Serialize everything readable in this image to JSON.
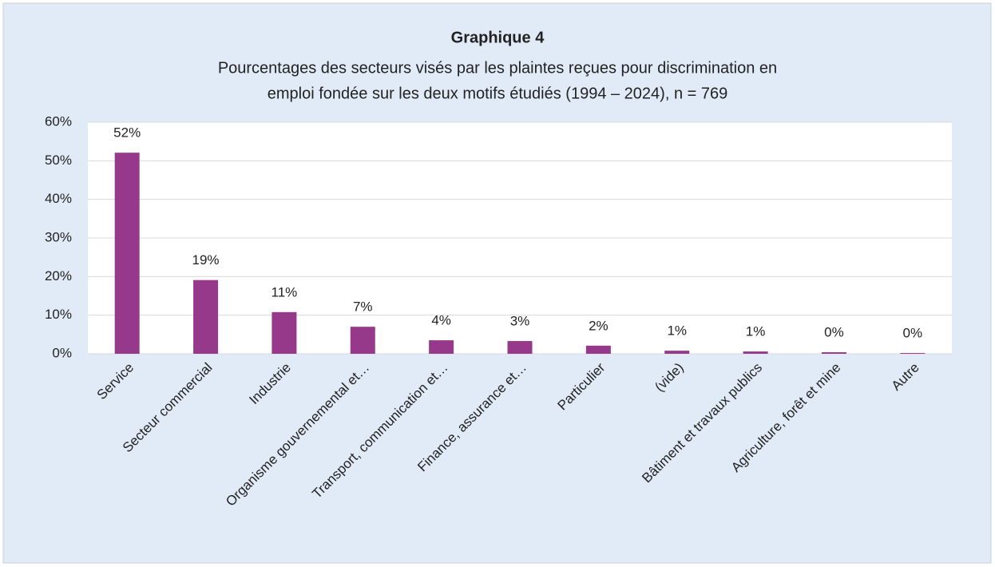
{
  "chart_data": {
    "type": "bar",
    "title": "Graphique 4",
    "subtitle": [
      "Pourcentages des secteurs visés par les plaintes reçues pour discrimination en",
      "emploi fondée sur les deux motifs étudiés (1994 – 2024), n = 769"
    ],
    "categories": [
      "Service",
      "Secteur commercial",
      "Industrie",
      "Organisme gouvernemental et…",
      "Transport, communication et…",
      "Finance, assurance et…",
      "Particulier",
      "(vide)",
      "Bâtiment et travaux publics",
      "Agriculture, forêt et mine",
      "Autre"
    ],
    "values": [
      52.1,
      19.1,
      10.8,
      7.0,
      3.5,
      3.3,
      2.1,
      0.8,
      0.6,
      0.4,
      0.2
    ],
    "value_labels": [
      "52%",
      "19%",
      "11%",
      "7%",
      "4%",
      "3%",
      "2%",
      "1%",
      "1%",
      "0%",
      "0%"
    ],
    "color": "#97398a",
    "ylim": [
      0,
      60
    ],
    "yticks": [
      {
        "value": 0,
        "label": "0%"
      },
      {
        "value": 10,
        "label": "10%"
      },
      {
        "value": 20,
        "label": "20%"
      },
      {
        "value": 30,
        "label": "30%"
      },
      {
        "value": 40,
        "label": "40%"
      },
      {
        "value": 50,
        "label": "50%"
      },
      {
        "value": 60,
        "label": "60%"
      }
    ],
    "grid": true
  }
}
